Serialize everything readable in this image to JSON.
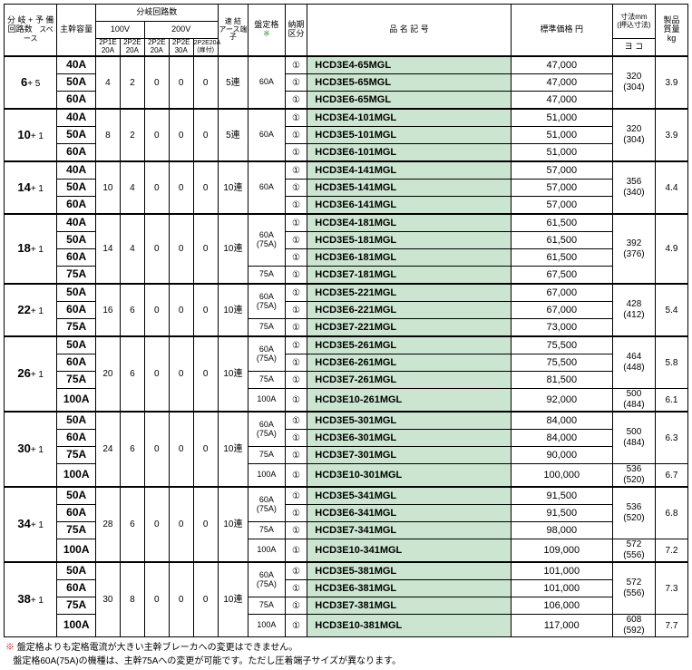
{
  "headers": {
    "col1_l1": "分 岐",
    "col1_l2": "回路数",
    "col1_plus": "+",
    "col1_r1": "予 備",
    "col1_r2": "スペース",
    "col2": "主幹容量",
    "grp_top": "分岐回路数",
    "grp_100v": "100V",
    "grp_200v": "200V",
    "sub1": "2P1E\n20A",
    "sub2": "2P2E\n20A",
    "sub3": "2P2E\n20A",
    "sub4": "2P2E\n30A",
    "sub5": "2P2E20A\n(扉付)",
    "col8a": "速 結",
    "col8b": "アース端子",
    "col9": "盤定格",
    "col9_star": "※",
    "col10": "納期\n区分",
    "col11": "品 名 記 号",
    "col12": "標準価格 円",
    "col13a": "寸法mm",
    "col13b": "(押込寸法)",
    "col13c": "ヨ コ",
    "col14": "製品\n質量\nkg"
  },
  "groups": [
    {
      "branch": "6",
      "sub": "+ 5",
      "v": [
        "4",
        "2",
        "0",
        "0",
        "0"
      ],
      "ren": "5連",
      "rows": [
        {
          "cap": "40A",
          "rating": "60A",
          "rspan": 3,
          "pn": "HCD3E4-65MGL",
          "price": "47,000",
          "dim": "320\n(304)",
          "dspan": 3,
          "wt": "3.9",
          "wspan": 3
        },
        {
          "cap": "50A",
          "pn": "HCD3E5-65MGL",
          "price": "47,000"
        },
        {
          "cap": "60A",
          "pn": "HCD3E6-65MGL",
          "price": "47,000"
        }
      ]
    },
    {
      "branch": "10",
      "sub": "+ 1",
      "v": [
        "8",
        "2",
        "0",
        "0",
        "0"
      ],
      "ren": "5連",
      "rows": [
        {
          "cap": "40A",
          "rating": "60A",
          "rspan": 3,
          "pn": "HCD3E4-101MGL",
          "price": "51,000",
          "dim": "320\n(304)",
          "dspan": 3,
          "wt": "3.9",
          "wspan": 3
        },
        {
          "cap": "50A",
          "pn": "HCD3E5-101MGL",
          "price": "51,000"
        },
        {
          "cap": "60A",
          "pn": "HCD3E6-101MGL",
          "price": "51,000"
        }
      ]
    },
    {
      "branch": "14",
      "sub": "+ 1",
      "v": [
        "10",
        "4",
        "0",
        "0",
        "0"
      ],
      "ren": "10連",
      "rows": [
        {
          "cap": "40A",
          "rating": "60A",
          "rspan": 3,
          "pn": "HCD3E4-141MGL",
          "price": "57,000",
          "dim": "356\n(340)",
          "dspan": 3,
          "wt": "4.4",
          "wspan": 3
        },
        {
          "cap": "50A",
          "pn": "HCD3E5-141MGL",
          "price": "57,000"
        },
        {
          "cap": "60A",
          "pn": "HCD3E6-141MGL",
          "price": "57,000"
        }
      ]
    },
    {
      "branch": "18",
      "sub": "+ 1",
      "v": [
        "14",
        "4",
        "0",
        "0",
        "0"
      ],
      "ren": "10連",
      "rows": [
        {
          "cap": "40A",
          "rating": "60A\n(75A)",
          "rspan": 3,
          "pn": "HCD3E4-181MGL",
          "price": "61,500",
          "dim": "392\n(376)",
          "dspan": 4,
          "wt": "4.9",
          "wspan": 4
        },
        {
          "cap": "50A",
          "pn": "HCD3E5-181MGL",
          "price": "61,500"
        },
        {
          "cap": "60A",
          "pn": "HCD3E6-181MGL",
          "price": "61,500"
        },
        {
          "cap": "75A",
          "rating": "75A",
          "rspan": 1,
          "pn": "HCD3E7-181MGL",
          "price": "67,500"
        }
      ]
    },
    {
      "branch": "22",
      "sub": "+ 1",
      "v": [
        "16",
        "6",
        "0",
        "0",
        "0"
      ],
      "ren": "10連",
      "rows": [
        {
          "cap": "50A",
          "rating": "60A\n(75A)",
          "rspan": 2,
          "pn": "HCD3E5-221MGL",
          "price": "67,000",
          "dim": "428\n(412)",
          "dspan": 3,
          "wt": "5.4",
          "wspan": 3
        },
        {
          "cap": "60A",
          "pn": "HCD3E6-221MGL",
          "price": "67,000"
        },
        {
          "cap": "75A",
          "rating": "75A",
          "rspan": 1,
          "pn": "HCD3E7-221MGL",
          "price": "73,000"
        }
      ]
    },
    {
      "branch": "26",
      "sub": "+ 1",
      "v": [
        "20",
        "6",
        "0",
        "0",
        "0"
      ],
      "ren": "10連",
      "rows": [
        {
          "cap": "50A",
          "rating": "60A\n(75A)",
          "rspan": 2,
          "pn": "HCD3E5-261MGL",
          "price": "75,500",
          "dim": "464\n(448)",
          "dspan": 3,
          "wt": "5.8",
          "wspan": 3
        },
        {
          "cap": "60A",
          "pn": "HCD3E6-261MGL",
          "price": "75,500"
        },
        {
          "cap": "75A",
          "rating": "75A",
          "rspan": 1,
          "pn": "HCD3E7-261MGL",
          "price": "81,500"
        },
        {
          "cap": "100A",
          "rating": "100A",
          "rspan": 1,
          "pn": "HCD3E10-261MGL",
          "price": "92,000",
          "dim": "500\n(484)",
          "dspan": 1,
          "wt": "6.1",
          "wspan": 1
        }
      ]
    },
    {
      "branch": "30",
      "sub": "+ 1",
      "v": [
        "24",
        "6",
        "0",
        "0",
        "0"
      ],
      "ren": "10連",
      "rows": [
        {
          "cap": "50A",
          "rating": "60A\n(75A)",
          "rspan": 2,
          "pn": "HCD3E5-301MGL",
          "price": "84,000",
          "dim": "500\n(484)",
          "dspan": 3,
          "wt": "6.3",
          "wspan": 3
        },
        {
          "cap": "60A",
          "pn": "HCD3E6-301MGL",
          "price": "84,000"
        },
        {
          "cap": "75A",
          "rating": "75A",
          "rspan": 1,
          "pn": "HCD3E7-301MGL",
          "price": "90,000"
        },
        {
          "cap": "100A",
          "rating": "100A",
          "rspan": 1,
          "pn": "HCD3E10-301MGL",
          "price": "100,000",
          "dim": "536\n(520)",
          "dspan": 1,
          "wt": "6.7",
          "wspan": 1
        }
      ]
    },
    {
      "branch": "34",
      "sub": "+ 1",
      "v": [
        "28",
        "6",
        "0",
        "0",
        "0"
      ],
      "ren": "10連",
      "rows": [
        {
          "cap": "50A",
          "rating": "60A\n(75A)",
          "rspan": 2,
          "pn": "HCD3E5-341MGL",
          "price": "91,500",
          "dim": "536\n(520)",
          "dspan": 3,
          "wt": "6.8",
          "wspan": 3
        },
        {
          "cap": "60A",
          "pn": "HCD3E6-341MGL",
          "price": "91,500"
        },
        {
          "cap": "75A",
          "rating": "75A",
          "rspan": 1,
          "pn": "HCD3E7-341MGL",
          "price": "98,000"
        },
        {
          "cap": "100A",
          "rating": "100A",
          "rspan": 1,
          "pn": "HCD3E10-341MGL",
          "price": "109,000",
          "dim": "572\n(556)",
          "dspan": 1,
          "wt": "7.2",
          "wspan": 1
        }
      ]
    },
    {
      "branch": "38",
      "sub": "+ 1",
      "v": [
        "30",
        "8",
        "0",
        "0",
        "0"
      ],
      "ren": "10連",
      "rows": [
        {
          "cap": "50A",
          "rating": "60A\n(75A)",
          "rspan": 2,
          "pn": "HCD3E5-381MGL",
          "price": "101,000",
          "dim": "572\n(556)",
          "dspan": 3,
          "wt": "7.3",
          "wspan": 3
        },
        {
          "cap": "60A",
          "pn": "HCD3E6-381MGL",
          "price": "101,000"
        },
        {
          "cap": "75A",
          "rating": "75A",
          "rspan": 1,
          "pn": "HCD3E7-381MGL",
          "price": "106,000"
        },
        {
          "cap": "100A",
          "rating": "100A",
          "rspan": 1,
          "pn": "HCD3E10-381MGL",
          "price": "117,000",
          "dim": "608\n(592)",
          "dspan": 1,
          "wt": "7.7",
          "wspan": 1
        }
      ]
    }
  ],
  "notes": {
    "n1_pre": "※ ",
    "n1": "盤定格よりも定格電流が大きい主幹ブレーカへの変更はできません。",
    "n2": "盤定格60A(75A)の機種は、主幹75Aへの変更が可能です。ただし圧着端子サイズが異なります。"
  }
}
